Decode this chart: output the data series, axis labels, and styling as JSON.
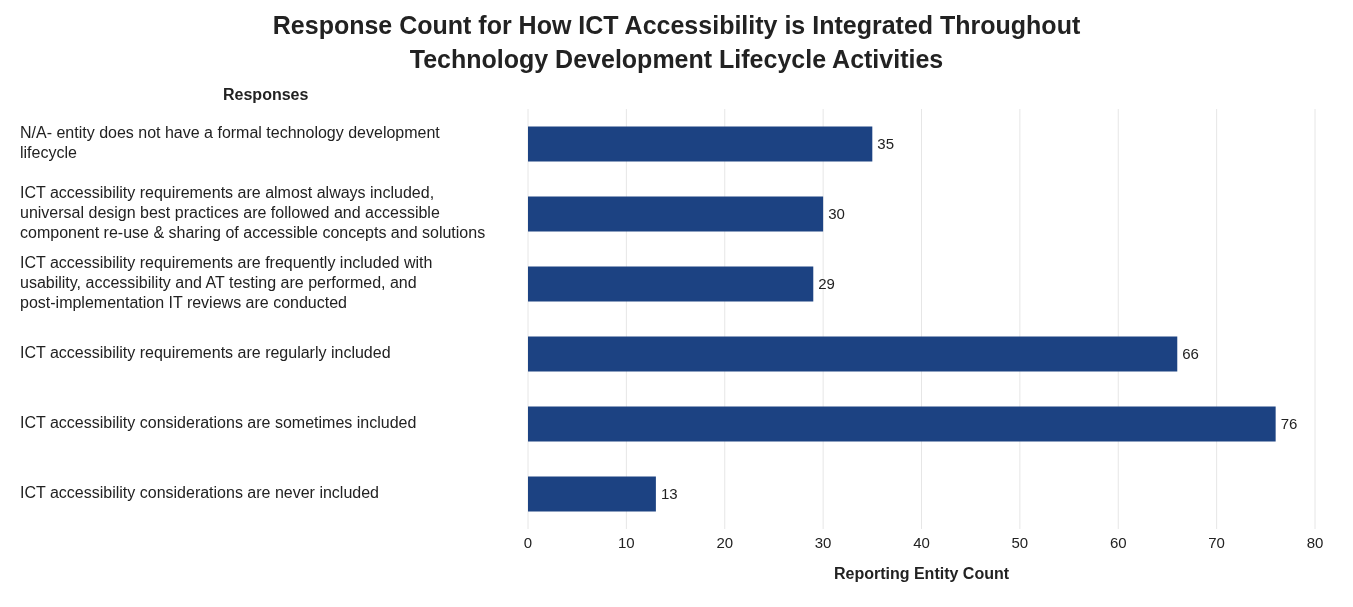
{
  "chart_data": {
    "type": "bar",
    "orientation": "horizontal",
    "title": "Response Count for How ICT Accessibility is Integrated Throughout Technology Development Lifecycle Activities",
    "ylabel": "Responses",
    "xlabel": "Reporting Entity Count",
    "categories": [
      "N/A- entity does not have a formal technology development lifecycle",
      "ICT  accessibility requirements are almost always included, universal design best practices are followed and accessible component re-use & sharing of accessible concepts and solutions",
      "ICT accessibility requirements are frequently included with usability, accessibility and AT testing are performed, and post-implementation IT reviews are conducted",
      "ICT accessibility requirements are regularly included",
      "ICT accessibility considerations are sometimes included",
      "ICT accessibility considerations are never included"
    ],
    "values": [
      35,
      30,
      29,
      66,
      76,
      13
    ],
    "color": "#1c4282",
    "xlim": [
      0,
      80
    ],
    "xticks": [
      0,
      10,
      20,
      30,
      40,
      50,
      60,
      70,
      80
    ],
    "grid": "x",
    "data_labels": true
  }
}
